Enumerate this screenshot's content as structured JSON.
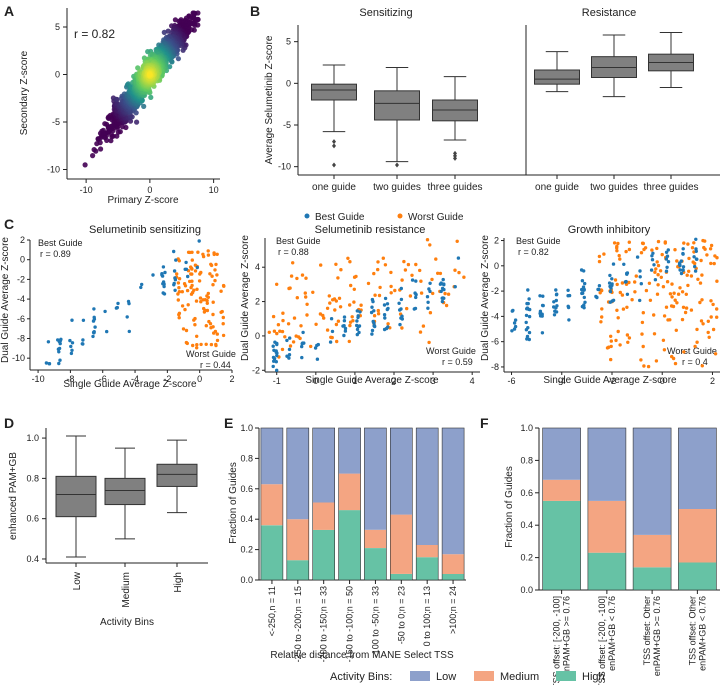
{
  "panel_letters": {
    "a": "A",
    "b": "B",
    "c": "C",
    "d": "D",
    "e": "E",
    "f": "F"
  },
  "colors": {
    "box": "#808080",
    "best": "#1f77b4",
    "worst": "#ff7f0e",
    "low": "#8da0cb",
    "medium": "#f4a582",
    "high": "#66c2a5",
    "density_low": "#440154",
    "density_high": "#fde725"
  },
  "chart_data": [
    {
      "id": "A",
      "type": "scatter",
      "xlabel": "Primary Z-score",
      "ylabel": "Secondary Z-score",
      "xticks": [
        -10,
        0,
        10
      ],
      "yticks": [
        -10,
        -5,
        0,
        5
      ],
      "xlim": [
        -13,
        11
      ],
      "ylim": [
        -11,
        7
      ],
      "annotation": "r = 0.82"
    },
    {
      "id": "B",
      "type": "box",
      "ylabel": "Average Selumetinib Z-score",
      "ylim": [
        -11,
        7
      ],
      "yticks": [
        -10,
        -5,
        0,
        5
      ],
      "subplots": [
        {
          "title": "Sensitizing",
          "categories": [
            "one guide",
            "two guides",
            "three guides"
          ],
          "boxes": [
            {
              "whislo": -5.8,
              "q1": -2.0,
              "med": -0.8,
              "q3": -0.1,
              "whishi": 2.2,
              "fliers": [
                -7.0,
                -7.5,
                -9.8
              ]
            },
            {
              "whislo": -9.4,
              "q1": -4.4,
              "med": -2.4,
              "q3": -0.9,
              "whishi": 1.9,
              "fliers": [
                -9.8
              ]
            },
            {
              "whislo": -6.8,
              "q1": -4.5,
              "med": -3.2,
              "q3": -2.0,
              "whishi": 0.8,
              "fliers": [
                -8.4,
                -8.7,
                -9.0
              ]
            }
          ]
        },
        {
          "title": "Resistance",
          "categories": [
            "one guide",
            "two guides",
            "three guides"
          ],
          "boxes": [
            {
              "whislo": -1.0,
              "q1": -0.1,
              "med": 0.5,
              "q3": 1.6,
              "whishi": 3.8,
              "fliers": []
            },
            {
              "whislo": -1.6,
              "q1": 0.7,
              "med": 1.9,
              "q3": 3.2,
              "whishi": 5.8,
              "fliers": []
            },
            {
              "whislo": -0.5,
              "q1": 1.5,
              "med": 2.5,
              "q3": 3.5,
              "whishi": 6.1,
              "fliers": []
            }
          ]
        }
      ]
    },
    {
      "id": "C",
      "type": "scatter",
      "legend": [
        "Best Guide",
        "Worst Guide"
      ],
      "xlabel": "Single Guide Average Z-score",
      "ylabel": "Dual Guide Average Z-score",
      "subplots": [
        {
          "title": "Selumetinib sensitizing",
          "xlim": [
            -10.5,
            2
          ],
          "ylim": [
            -11.2,
            2
          ],
          "xticks": [
            -10,
            -8,
            -6,
            -4,
            -2,
            0,
            2
          ],
          "yticks": [
            -10,
            -8,
            -6,
            -4,
            -2,
            0,
            2
          ],
          "best_label": "Best Guide",
          "best_r": "r = 0.89",
          "worst_label": "Worst Guide",
          "worst_r": "r = 0.44"
        },
        {
          "title": "Selumetinib resistance",
          "xlim": [
            -1.3,
            4.2
          ],
          "ylim": [
            -2.1,
            5.7
          ],
          "xticks": [
            -1,
            0,
            1,
            2,
            3,
            4
          ],
          "yticks": [
            -2,
            0,
            2,
            4
          ],
          "best_label": "Best Guide",
          "best_r": "r = 0.88",
          "worst_label": "Worst Guide",
          "worst_r": "r = 0.59"
        },
        {
          "title": "Growth inhibitory",
          "xlim": [
            -6.3,
            2.3
          ],
          "ylim": [
            -8.4,
            2.2
          ],
          "xticks": [
            -6,
            -4,
            -2,
            0,
            2
          ],
          "yticks": [
            -8,
            -6,
            -4,
            -2,
            0,
            2
          ],
          "best_label": "Best Guide",
          "best_r": "r = 0.82",
          "worst_label": "Worst Guide",
          "worst_r": "r = 0.4"
        }
      ]
    },
    {
      "id": "D",
      "type": "box",
      "xlabel": "Activity Bins",
      "ylabel": "enhanced PAM+GB",
      "categories": [
        "Low",
        "Medium",
        "High"
      ],
      "ylim": [
        0.38,
        1.05
      ],
      "yticks": [
        0.4,
        0.6,
        0.8,
        1.0
      ],
      "yticklabels": [
        "0.4",
        "0.6",
        "0.8",
        "1.0"
      ],
      "boxes": [
        {
          "whislo": 0.41,
          "q1": 0.61,
          "med": 0.72,
          "q3": 0.81,
          "whishi": 1.01
        },
        {
          "whislo": 0.5,
          "q1": 0.67,
          "med": 0.74,
          "q3": 0.8,
          "whishi": 0.95
        },
        {
          "whislo": 0.63,
          "q1": 0.76,
          "med": 0.82,
          "q3": 0.87,
          "whishi": 0.99
        }
      ]
    },
    {
      "id": "E",
      "type": "bar",
      "stacked": true,
      "xlabel": "Relative distance from MANE Select TSS",
      "ylabel": "Fraction of Guides",
      "ylim": [
        0,
        1
      ],
      "yticks": [
        0,
        0.2,
        0.4,
        0.6,
        0.8,
        1.0
      ],
      "yticklabels": [
        "0.0",
        "0.2",
        "0.4",
        "0.6",
        "0.8",
        "1.0"
      ],
      "categories": [
        "<-250,n = 11",
        "-250 to -200;n = 15",
        "-200 to -150;n = 33",
        "-150 to -100;n = 50",
        "-100 to -50;n = 33",
        "-50 to 0;n = 23",
        "0 to 100;n = 13",
        ">100;n = 24"
      ],
      "series": [
        {
          "name": "High",
          "values": [
            0.36,
            0.13,
            0.33,
            0.46,
            0.21,
            0.04,
            0.15,
            0.04
          ]
        },
        {
          "name": "Medium",
          "values": [
            0.27,
            0.27,
            0.18,
            0.24,
            0.12,
            0.39,
            0.08,
            0.13
          ]
        },
        {
          "name": "Low",
          "values": [
            0.37,
            0.6,
            0.49,
            0.3,
            0.67,
            0.57,
            0.77,
            0.83
          ]
        }
      ]
    },
    {
      "id": "F",
      "type": "bar",
      "stacked": true,
      "ylabel": "Fraction of Guides",
      "ylim": [
        0,
        1
      ],
      "yticks": [
        0,
        0.2,
        0.4,
        0.6,
        0.8,
        1.0
      ],
      "yticklabels": [
        "0.0",
        "0.2",
        "0.4",
        "0.6",
        "0.8",
        "1.0"
      ],
      "categories": [
        [
          "TSS offset: [-200, -100]",
          "enPAM+GB >= 0.76"
        ],
        [
          "TSS offset: [-200, -100]",
          "enPAM+GB < 0.76"
        ],
        [
          "TSS offset: Other",
          "enPAM+GB >= 0.76"
        ],
        [
          "TSS offset: Other",
          "enPAM+GB < 0.76"
        ]
      ],
      "series": [
        {
          "name": "High",
          "values": [
            0.55,
            0.23,
            0.14,
            0.17
          ]
        },
        {
          "name": "Medium",
          "values": [
            0.13,
            0.32,
            0.2,
            0.33
          ]
        },
        {
          "name": "Low",
          "values": [
            0.32,
            0.45,
            0.66,
            0.5
          ]
        }
      ]
    }
  ],
  "legend_bottom": {
    "title": "Activity Bins:",
    "items": [
      "Low",
      "Medium",
      "High"
    ]
  }
}
